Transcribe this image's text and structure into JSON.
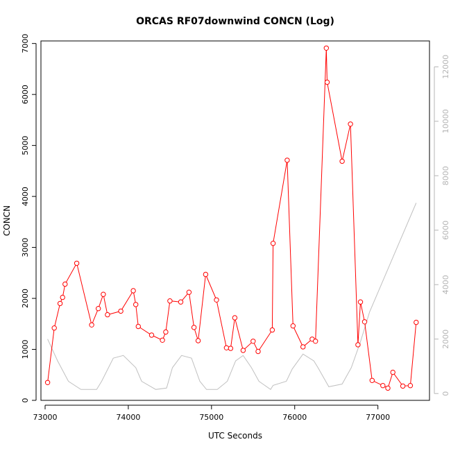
{
  "chart_data": {
    "type": "line",
    "title": "ORCAS RF07downwind CONCN (Log)",
    "xlabel": "UTC Seconds",
    "ylabel": "CONCN",
    "xlim": [
      72950,
      77620
    ],
    "ylim": [
      0,
      7050
    ],
    "ylim_right": [
      -250,
      12950
    ],
    "x_ticks": [
      73000,
      74000,
      75000,
      76000,
      77000
    ],
    "y_ticks": [
      0,
      1000,
      2000,
      3000,
      4000,
      5000,
      6000,
      7000
    ],
    "y_ticks_right": [
      0,
      2000,
      4000,
      6000,
      8000,
      10000,
      12000
    ],
    "grid": false,
    "series": [
      {
        "axis": "left",
        "color": "#ff0000",
        "marker": "open-circle",
        "x": [
          73030,
          73110,
          73180,
          73210,
          73240,
          73380,
          73560,
          73640,
          73700,
          73750,
          73910,
          74060,
          74090,
          74120,
          74280,
          74410,
          74450,
          74500,
          74630,
          74730,
          74790,
          74840,
          74930,
          75060,
          75180,
          75230,
          75280,
          75380,
          75500,
          75560,
          75730,
          75740,
          75910,
          75980,
          76100,
          76210,
          76250,
          76380,
          76390,
          76570,
          76670,
          76760,
          76790,
          76840,
          76930,
          77060,
          77120,
          77180,
          77300,
          77390,
          77460
        ],
        "y": [
          350,
          1420,
          1900,
          2020,
          2280,
          2690,
          1480,
          1800,
          2080,
          1680,
          1750,
          2150,
          1880,
          1450,
          1280,
          1180,
          1340,
          1950,
          1930,
          2120,
          1430,
          1170,
          2470,
          1970,
          1030,
          1020,
          1620,
          980,
          1160,
          960,
          1380,
          3080,
          4710,
          1460,
          1050,
          1200,
          1160,
          6910,
          6240,
          4690,
          5420,
          1090,
          1930,
          1540,
          390,
          290,
          240,
          550,
          280,
          290,
          1530
        ]
      },
      {
        "axis": "right",
        "color": "#c0c0c0",
        "marker": "none",
        "x": [
          73030,
          73150,
          73280,
          73430,
          73620,
          73680,
          73820,
          73940,
          74090,
          74160,
          74330,
          74460,
          74530,
          74640,
          74760,
          74860,
          74940,
          75070,
          75190,
          75290,
          75380,
          75480,
          75570,
          75710,
          75740,
          75900,
          75970,
          76100,
          76230,
          76280,
          76410,
          76570,
          76680,
          76790,
          76900,
          77460
        ],
        "y": [
          2000,
          1200,
          450,
          150,
          150,
          450,
          1300,
          1400,
          950,
          450,
          150,
          200,
          950,
          1400,
          1300,
          450,
          150,
          150,
          450,
          1200,
          1400,
          950,
          450,
          150,
          300,
          450,
          900,
          1450,
          1200,
          950,
          250,
          350,
          950,
          1900,
          3000,
          7000
        ]
      }
    ]
  }
}
